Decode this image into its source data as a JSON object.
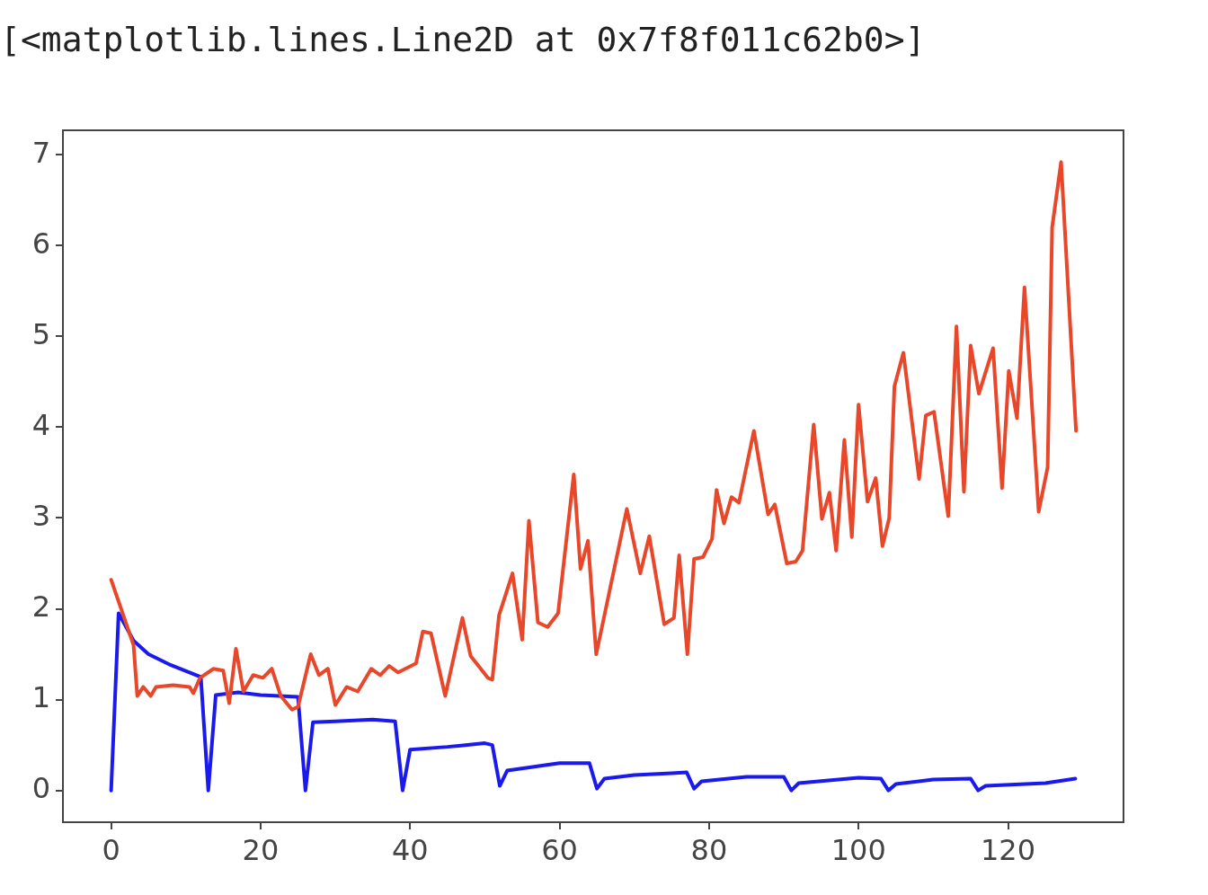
{
  "chart_data": {
    "type": "line",
    "annotations": [
      "[<matplotlib.lines.Line2D at 0x7f8f011c62b0>]"
    ],
    "xlim": [
      -6.45,
      135.45
    ],
    "xticks": [
      0,
      20,
      40,
      60,
      80,
      100,
      120
    ],
    "ylim": [
      -0.35,
      7.27
    ],
    "yticks": [
      0,
      1,
      2,
      3,
      4,
      5,
      6,
      7
    ],
    "grid": false,
    "legend": false,
    "marker": "none",
    "line_style": "solid",
    "series": [
      {
        "color": "#e8472a",
        "x": [
          0,
          3,
          3.5,
          4.3,
          5.3,
          6,
          8.3,
          10.5,
          11,
          11.9,
          13.7,
          15,
          15.8,
          16.7,
          17.7,
          19,
          20.3,
          21.5,
          22.7,
          24.2,
          25,
          26.7,
          27.8,
          29,
          30,
          31.5,
          33,
          34.8,
          36,
          37.2,
          38.4,
          40.8,
          41.7,
          42.8,
          44.7,
          47,
          48.1,
          50.4,
          51,
          51.9,
          53.7,
          55,
          55.9,
          57.1,
          58.4,
          59.8,
          61.9,
          62.8,
          63.8,
          64.9,
          69,
          70.8,
          72,
          74,
          75.3,
          76,
          77.1,
          78,
          79.2,
          80.4,
          81,
          82,
          83,
          84,
          86,
          87.9,
          88.8,
          90.4,
          91.6,
          92.5,
          94,
          95.1,
          96.1,
          97,
          98.1,
          99.1,
          100,
          101.2,
          102.3,
          103.2,
          104.1,
          104.8,
          106,
          108.1,
          109,
          110.1,
          112,
          113.1,
          114.1,
          115,
          116.1,
          118,
          119.2,
          120.1,
          121.2,
          122.2,
          124.1,
          125.3,
          125.9,
          127.1,
          129.1
        ],
        "values": [
          2.32,
          1.6,
          1.04,
          1.14,
          1.04,
          1.14,
          1.16,
          1.14,
          1.07,
          1.24,
          1.34,
          1.32,
          0.96,
          1.56,
          1.09,
          1.27,
          1.24,
          1.34,
          1.04,
          0.89,
          0.92,
          1.5,
          1.27,
          1.34,
          0.94,
          1.14,
          1.09,
          1.34,
          1.27,
          1.37,
          1.3,
          1.4,
          1.75,
          1.73,
          1.04,
          1.9,
          1.48,
          1.24,
          1.22,
          1.93,
          2.39,
          1.66,
          2.97,
          1.85,
          1.8,
          1.95,
          3.48,
          2.44,
          2.75,
          1.5,
          3.1,
          2.39,
          2.8,
          1.83,
          1.9,
          2.59,
          1.5,
          2.55,
          2.57,
          2.77,
          3.31,
          2.94,
          3.23,
          3.17,
          3.96,
          3.04,
          3.15,
          2.5,
          2.52,
          2.64,
          4.03,
          2.99,
          3.28,
          2.64,
          3.86,
          2.79,
          4.25,
          3.18,
          3.44,
          2.69,
          3.0,
          4.45,
          4.82,
          3.43,
          4.13,
          4.17,
          3.02,
          5.11,
          3.29,
          4.9,
          4.37,
          4.87,
          3.33,
          4.62,
          4.1,
          5.54,
          3.07,
          3.56,
          6.2,
          6.92,
          3.96
        ]
      },
      {
        "color": "#1a1aee",
        "x": [
          0,
          1,
          3,
          5,
          8,
          12,
          13,
          14,
          17,
          20,
          25,
          26,
          27,
          30,
          35,
          38,
          39,
          40,
          45,
          50,
          51,
          52,
          53,
          60,
          64,
          65,
          66,
          70,
          75,
          77,
          78,
          79,
          85,
          90,
          91,
          92,
          100,
          103,
          104,
          105,
          110,
          115,
          116,
          117,
          125,
          129
        ],
        "values": [
          0,
          1.95,
          1.65,
          1.5,
          1.38,
          1.25,
          0,
          1.05,
          1.08,
          1.05,
          1.03,
          0,
          0.75,
          0.76,
          0.78,
          0.76,
          0,
          0.45,
          0.48,
          0.52,
          0.5,
          0.05,
          0.22,
          0.3,
          0.3,
          0.02,
          0.13,
          0.17,
          0.19,
          0.2,
          0.02,
          0.1,
          0.15,
          0.15,
          0,
          0.08,
          0.14,
          0.13,
          0,
          0.07,
          0.12,
          0.13,
          0,
          0.05,
          0.08,
          0.13
        ]
      }
    ]
  }
}
